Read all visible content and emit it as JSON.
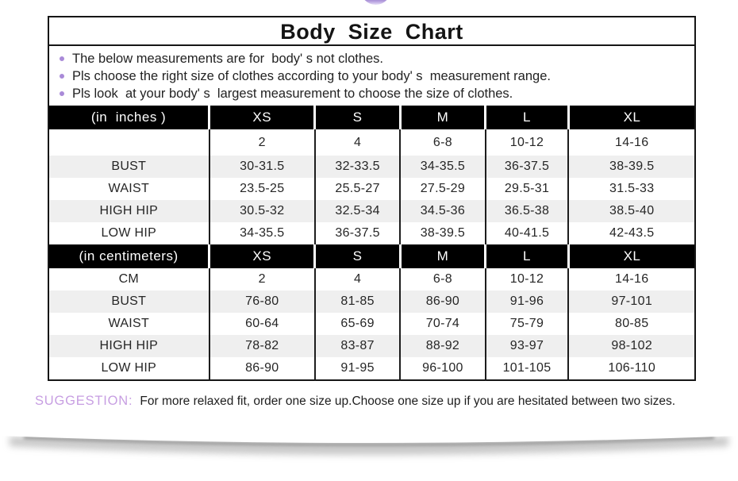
{
  "header": {
    "title": "Body  Size  Chart"
  },
  "notes": [
    "The below measurements are for  body' s not clothes.",
    "Pls choose the right size of clothes according to your body' s  measurement range.",
    "Pls look  at your body' s  largest measurement to choose the size of clothes."
  ],
  "size_table": {
    "inches": {
      "header": {
        "label": "(in  inches )",
        "sizes": [
          "XS",
          "S",
          "M",
          "L",
          "XL"
        ]
      },
      "rows": [
        {
          "label": "",
          "values": [
            "2",
            "4",
            "6-8",
            "10-12",
            "14-16"
          ]
        },
        {
          "label": "BUST",
          "values": [
            "30-31.5",
            "32-33.5",
            "34-35.5",
            "36-37.5",
            "38-39.5"
          ]
        },
        {
          "label": "WAIST",
          "values": [
            "23.5-25",
            "25.5-27",
            "27.5-29",
            "29.5-31",
            "31.5-33"
          ]
        },
        {
          "label": "HIGH HIP",
          "values": [
            "30.5-32",
            "32.5-34",
            "34.5-36",
            "36.5-38",
            "38.5-40"
          ]
        },
        {
          "label": "LOW HIP",
          "values": [
            "34-35.5",
            "36-37.5",
            "38-39.5",
            "40-41.5",
            "42-43.5"
          ]
        }
      ]
    },
    "centimeters": {
      "header": {
        "label": "(in centimeters)",
        "sizes": [
          "XS",
          "S",
          "M",
          "L",
          "XL"
        ]
      },
      "rows": [
        {
          "label": "CM",
          "values": [
            "2",
            "4",
            "6-8",
            "10-12",
            "14-16"
          ]
        },
        {
          "label": "BUST",
          "values": [
            "76-80",
            "81-85",
            "86-90",
            "91-96",
            "97-101"
          ]
        },
        {
          "label": "WAIST",
          "values": [
            "60-64",
            "65-69",
            "70-74",
            "75-79",
            "80-85"
          ]
        },
        {
          "label": "HIGH HIP",
          "values": [
            "78-82",
            "83-87",
            "88-92",
            "93-97",
            "98-102"
          ]
        },
        {
          "label": "LOW HIP",
          "values": [
            "86-90",
            "91-95",
            "96-100",
            "101-105",
            "106-110"
          ]
        }
      ]
    }
  },
  "suggestion": {
    "label": "SUGGESTION:",
    "text": "For more relaxed fit, order one size up.Choose one size up if you are hesitated between two sizes."
  },
  "colors": {
    "bullet_purple": "#a98ad8",
    "suggestion_purple": "#c79ee2",
    "header_bg": "#000000",
    "stripe_gray": "#efefef",
    "border_dark": "#161616"
  }
}
